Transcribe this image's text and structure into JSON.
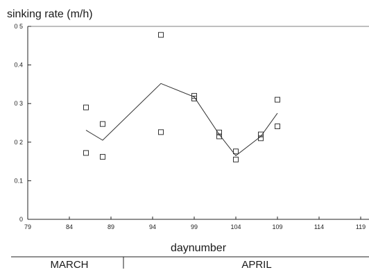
{
  "chart_data": {
    "type": "scatter",
    "ylabel": "sinking rate (m/h)",
    "xlabel": "daynumber",
    "xlim": [
      79,
      120
    ],
    "ylim": [
      0,
      0.5
    ],
    "xticks": [
      79,
      84,
      89,
      94,
      99,
      104,
      109,
      114,
      119
    ],
    "xtick_labels": [
      "79",
      "84",
      "89",
      "94",
      "99",
      "104",
      "109",
      "114",
      "119"
    ],
    "yticks": [
      0,
      0.1,
      0.2,
      0.3,
      0.4,
      0.5
    ],
    "ytick_labels": [
      "0",
      "0.1",
      "0 2",
      "0 3",
      "0.4",
      "0 5"
    ],
    "grid": false,
    "points": [
      {
        "x": 86,
        "y": 0.29
      },
      {
        "x": 86,
        "y": 0.172
      },
      {
        "x": 88,
        "y": 0.247
      },
      {
        "x": 88,
        "y": 0.162
      },
      {
        "x": 95,
        "y": 0.478
      },
      {
        "x": 95,
        "y": 0.226
      },
      {
        "x": 99,
        "y": 0.32
      },
      {
        "x": 99,
        "y": 0.313
      },
      {
        "x": 102,
        "y": 0.225
      },
      {
        "x": 102,
        "y": 0.215
      },
      {
        "x": 104,
        "y": 0.176
      },
      {
        "x": 104,
        "y": 0.155
      },
      {
        "x": 107,
        "y": 0.22
      },
      {
        "x": 107,
        "y": 0.21
      },
      {
        "x": 109,
        "y": 0.31
      },
      {
        "x": 109,
        "y": 0.241
      }
    ],
    "mean_line": {
      "x": [
        86,
        88,
        95,
        99,
        102,
        104,
        107,
        109
      ],
      "y": [
        0.231,
        0.205,
        0.352,
        0.317,
        0.22,
        0.165,
        0.215,
        0.275
      ]
    },
    "months": [
      {
        "label": "MARCH",
        "x_start": 79,
        "x_end": 90.5
      },
      {
        "label": "APRIL",
        "x_start": 90.5,
        "x_end": 120
      }
    ]
  }
}
